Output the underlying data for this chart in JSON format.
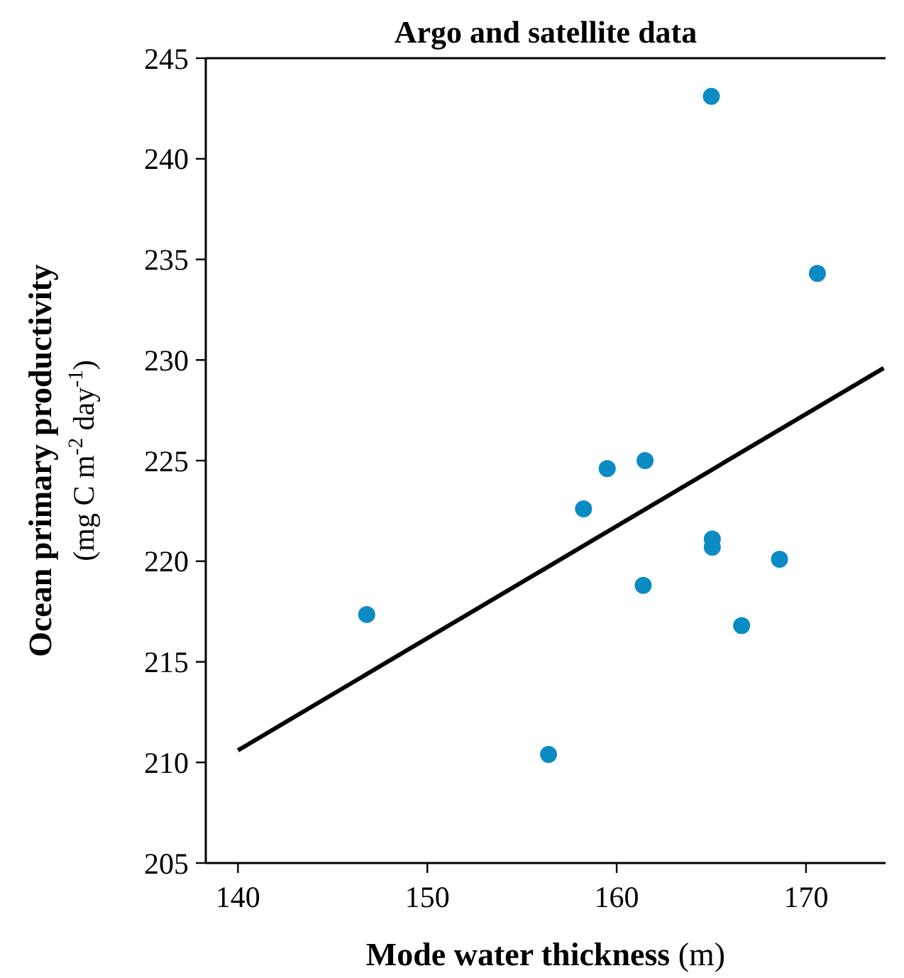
{
  "chart_data": {
    "type": "scatter",
    "title": "Argo and satellite data",
    "xlabel": "Mode water thickness (m)",
    "ylabel": "Ocean primary productivity\n(mg C m$^{-2}$ day$^{-1}$)",
    "xlim": [
      138.3,
      174.2
    ],
    "ylim": [
      205,
      245
    ],
    "xticks": [
      140,
      150,
      160,
      170
    ],
    "yticks": [
      205,
      210,
      215,
      220,
      225,
      230,
      235,
      240,
      245
    ],
    "grid": false,
    "series": [
      {
        "marker": "circle",
        "color": "#0b8bc4",
        "x": [
          146.8,
          156.4,
          158.25,
          159.5,
          161.5,
          161.4,
          165.0,
          165.05,
          165.05,
          166.6,
          168.6,
          170.6
        ],
        "values": [
          217.35,
          210.4,
          222.6,
          224.6,
          225.0,
          218.8,
          243.1,
          221.1,
          220.7,
          216.8,
          220.1,
          234.3
        ]
      },
      {
        "type": "line",
        "color": "#000000",
        "line_style": "solid",
        "x": [
          140,
          174.1
        ],
        "values": [
          210.6,
          229.6
        ]
      }
    ]
  }
}
